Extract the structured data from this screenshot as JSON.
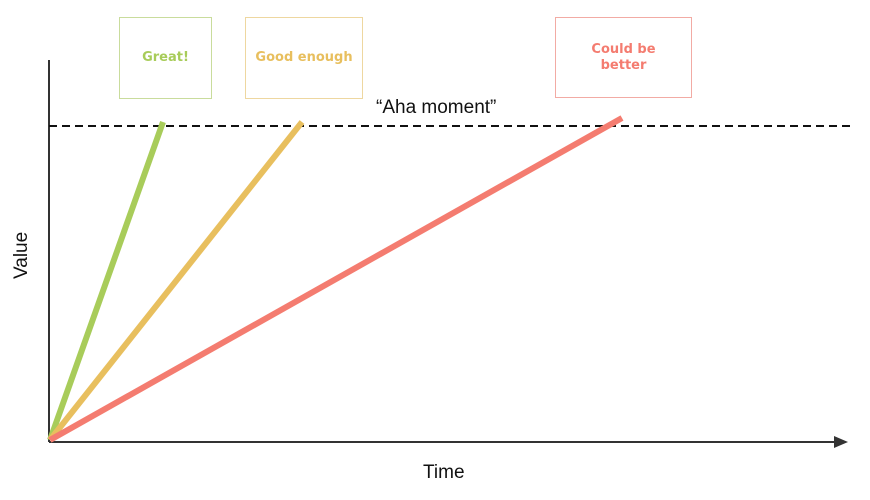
{
  "labels": {
    "aha": "“Aha moment”",
    "x_axis": "Time",
    "y_axis": "Value"
  },
  "series": [
    {
      "id": "great",
      "label": "Great!",
      "color": "#a8cc5a",
      "slope_rank": 1
    },
    {
      "id": "good",
      "label": "Good enough",
      "color": "#e8bf5e",
      "slope_rank": 2
    },
    {
      "id": "better",
      "label": "Could be better",
      "color": "#f47c70",
      "slope_rank": 3
    }
  ],
  "colors": {
    "axis": "#333333",
    "threshold": "#111111"
  }
}
